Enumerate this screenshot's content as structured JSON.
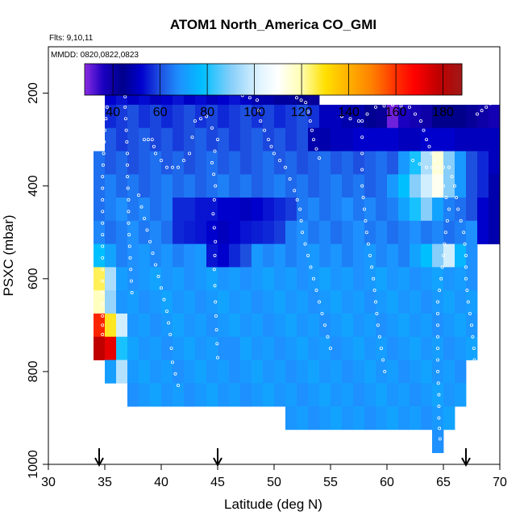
{
  "chart_data": {
    "type": "heatmap",
    "title": "ATOM1 North_America CO_GMI",
    "info_lines": [
      "Flts: 9,10,11",
      "MMDD: 0820,0822,0823"
    ],
    "xlabel": "Latitude (deg N)",
    "ylabel": "PSXC (mbar)",
    "xlim": [
      30,
      70
    ],
    "ylim": [
      1000,
      100
    ],
    "x_ticks": [
      30,
      35,
      40,
      45,
      50,
      55,
      60,
      65,
      70
    ],
    "x_tick_labels": [
      "30",
      "35",
      "40",
      "45",
      "50",
      "55",
      "60",
      "65",
      "70"
    ],
    "y_ticks": [
      200,
      400,
      600,
      800,
      1000
    ],
    "y_tick_labels": [
      "200",
      "400",
      "600",
      "800",
      "1000"
    ],
    "grid": false,
    "colorbar": {
      "range": [
        28,
        188
      ],
      "ticks": [
        40,
        60,
        80,
        100,
        120,
        140,
        160,
        180
      ],
      "tick_labels": [
        "40",
        "60",
        "80",
        "100",
        "120",
        "140",
        "160",
        "180"
      ],
      "stops": [
        {
          "v": 28,
          "c": "#8A2BE2"
        },
        {
          "v": 36,
          "c": "#1A00C0"
        },
        {
          "v": 44,
          "c": "#00008B"
        },
        {
          "v": 52,
          "c": "#0000CD"
        },
        {
          "v": 60,
          "c": "#1E50E0"
        },
        {
          "v": 68,
          "c": "#1E90FF"
        },
        {
          "v": 78,
          "c": "#00BFFF"
        },
        {
          "v": 90,
          "c": "#87CEFA"
        },
        {
          "v": 102,
          "c": "#E0F4FF"
        },
        {
          "v": 110,
          "c": "#FFFFFF"
        },
        {
          "v": 120,
          "c": "#FFFFB0"
        },
        {
          "v": 130,
          "c": "#FFE000"
        },
        {
          "v": 140,
          "c": "#FFB000"
        },
        {
          "v": 150,
          "c": "#FF8000"
        },
        {
          "v": 160,
          "c": "#FF3000"
        },
        {
          "v": 168,
          "c": "#FF0000"
        },
        {
          "v": 178,
          "c": "#C00000"
        },
        {
          "v": 188,
          "c": "#A01818"
        }
      ]
    },
    "bin_width_deg": 1,
    "bin_height_mbar": 50,
    "rows": [
      {
        "p": 200,
        "lat": [
          35,
          53
        ],
        "value": 52
      },
      {
        "p": 250,
        "lat": [
          35,
          69
        ],
        "value": 58
      },
      {
        "p": 300,
        "lat": [
          35,
          69
        ],
        "value": 60
      },
      {
        "p": 350,
        "lat": [
          34,
          69
        ],
        "value": 62
      },
      {
        "p": 400,
        "lat": [
          34,
          69
        ],
        "value": 64
      },
      {
        "p": 450,
        "lat": [
          34,
          69
        ],
        "value": 66
      },
      {
        "p": 500,
        "lat": [
          34,
          69
        ],
        "value": 66
      },
      {
        "p": 550,
        "lat": [
          34,
          68
        ],
        "value": 68
      },
      {
        "p": 600,
        "lat": [
          34,
          68
        ],
        "value": 70
      },
      {
        "p": 650,
        "lat": [
          34,
          68
        ],
        "value": 70
      },
      {
        "p": 700,
        "lat": [
          34,
          68
        ],
        "value": 70
      },
      {
        "p": 750,
        "lat": [
          34,
          68
        ],
        "value": 70
      },
      {
        "p": 800,
        "lat": [
          35,
          67
        ],
        "value": 70
      },
      {
        "p": 850,
        "lat": [
          37,
          67
        ],
        "value": 70
      },
      {
        "p": 900,
        "lat": [
          51,
          66
        ],
        "value": 70
      },
      {
        "p": 950,
        "lat": [
          64,
          65
        ],
        "value": 70
      }
    ],
    "cells": [
      {
        "lat": 60,
        "p": 250,
        "v": 30
      },
      {
        "lat": 61,
        "p": 250,
        "v": 36
      },
      {
        "lat": 62,
        "p": 250,
        "v": 38
      },
      {
        "lat": 63,
        "p": 250,
        "v": 40
      },
      {
        "lat": 64,
        "p": 250,
        "v": 44
      },
      {
        "lat": 65,
        "p": 250,
        "v": 44
      },
      {
        "lat": 66,
        "p": 250,
        "v": 44
      },
      {
        "lat": 67,
        "p": 250,
        "v": 42
      },
      {
        "lat": 68,
        "p": 250,
        "v": 40
      },
      {
        "lat": 69,
        "p": 250,
        "v": 38
      },
      {
        "lat": 58,
        "p": 250,
        "v": 45
      },
      {
        "lat": 59,
        "p": 250,
        "v": 42
      },
      {
        "lat": 54,
        "p": 250,
        "v": 50
      },
      {
        "lat": 55,
        "p": 250,
        "v": 50
      },
      {
        "lat": 56,
        "p": 250,
        "v": 48
      },
      {
        "lat": 57,
        "p": 250,
        "v": 48
      },
      {
        "lat": 48,
        "p": 200,
        "v": 48
      },
      {
        "lat": 49,
        "p": 200,
        "v": 48
      },
      {
        "lat": 50,
        "p": 200,
        "v": 46
      },
      {
        "lat": 51,
        "p": 200,
        "v": 46
      },
      {
        "lat": 52,
        "p": 200,
        "v": 44
      },
      {
        "lat": 53,
        "p": 200,
        "v": 42
      },
      {
        "lat": 53,
        "p": 300,
        "v": 48
      },
      {
        "lat": 54,
        "p": 300,
        "v": 48
      },
      {
        "lat": 55,
        "p": 300,
        "v": 50
      },
      {
        "lat": 56,
        "p": 300,
        "v": 50
      },
      {
        "lat": 57,
        "p": 300,
        "v": 52
      },
      {
        "lat": 58,
        "p": 300,
        "v": 52
      },
      {
        "lat": 59,
        "p": 300,
        "v": 52
      },
      {
        "lat": 60,
        "p": 300,
        "v": 52
      },
      {
        "lat": 61,
        "p": 300,
        "v": 50
      },
      {
        "lat": 62,
        "p": 300,
        "v": 50
      },
      {
        "lat": 63,
        "p": 300,
        "v": 52
      },
      {
        "lat": 64,
        "p": 300,
        "v": 52
      },
      {
        "lat": 65,
        "p": 300,
        "v": 52
      },
      {
        "lat": 66,
        "p": 300,
        "v": 50
      },
      {
        "lat": 67,
        "p": 300,
        "v": 50
      },
      {
        "lat": 68,
        "p": 300,
        "v": 50
      },
      {
        "lat": 69,
        "p": 300,
        "v": 50
      },
      {
        "lat": 61,
        "p": 350,
        "v": 70
      },
      {
        "lat": 62,
        "p": 350,
        "v": 80
      },
      {
        "lat": 63,
        "p": 350,
        "v": 95
      },
      {
        "lat": 64,
        "p": 350,
        "v": 115
      },
      {
        "lat": 65,
        "p": 350,
        "v": 90
      },
      {
        "lat": 66,
        "p": 350,
        "v": 70
      },
      {
        "lat": 67,
        "p": 350,
        "v": 60
      },
      {
        "lat": 68,
        "p": 350,
        "v": 56
      },
      {
        "lat": 69,
        "p": 350,
        "v": 50
      },
      {
        "lat": 60,
        "p": 400,
        "v": 70
      },
      {
        "lat": 61,
        "p": 400,
        "v": 78
      },
      {
        "lat": 62,
        "p": 400,
        "v": 90
      },
      {
        "lat": 63,
        "p": 400,
        "v": 100
      },
      {
        "lat": 64,
        "p": 400,
        "v": 112
      },
      {
        "lat": 65,
        "p": 400,
        "v": 90
      },
      {
        "lat": 66,
        "p": 400,
        "v": 70
      },
      {
        "lat": 67,
        "p": 400,
        "v": 60
      },
      {
        "lat": 68,
        "p": 400,
        "v": 56
      },
      {
        "lat": 69,
        "p": 400,
        "v": 48
      },
      {
        "lat": 61,
        "p": 450,
        "v": 72
      },
      {
        "lat": 62,
        "p": 450,
        "v": 80
      },
      {
        "lat": 63,
        "p": 450,
        "v": 90
      },
      {
        "lat": 64,
        "p": 450,
        "v": 72
      },
      {
        "lat": 65,
        "p": 450,
        "v": 66
      },
      {
        "lat": 66,
        "p": 450,
        "v": 64
      },
      {
        "lat": 67,
        "p": 450,
        "v": 60
      },
      {
        "lat": 68,
        "p": 450,
        "v": 52
      },
      {
        "lat": 69,
        "p": 450,
        "v": 48
      },
      {
        "lat": 41,
        "p": 450,
        "v": 56
      },
      {
        "lat": 42,
        "p": 450,
        "v": 56
      },
      {
        "lat": 43,
        "p": 450,
        "v": 54
      },
      {
        "lat": 44,
        "p": 450,
        "v": 54
      },
      {
        "lat": 45,
        "p": 450,
        "v": 52
      },
      {
        "lat": 46,
        "p": 450,
        "v": 52
      },
      {
        "lat": 47,
        "p": 450,
        "v": 50
      },
      {
        "lat": 48,
        "p": 450,
        "v": 52
      },
      {
        "lat": 49,
        "p": 450,
        "v": 54
      },
      {
        "lat": 50,
        "p": 450,
        "v": 56
      },
      {
        "lat": 51,
        "p": 450,
        "v": 58
      },
      {
        "lat": 69,
        "p": 500,
        "v": 48
      },
      {
        "lat": 68,
        "p": 500,
        "v": 52
      },
      {
        "lat": 41,
        "p": 500,
        "v": 56
      },
      {
        "lat": 42,
        "p": 500,
        "v": 55
      },
      {
        "lat": 43,
        "p": 500,
        "v": 54
      },
      {
        "lat": 44,
        "p": 500,
        "v": 52
      },
      {
        "lat": 45,
        "p": 500,
        "v": 50
      },
      {
        "lat": 46,
        "p": 500,
        "v": 52
      },
      {
        "lat": 47,
        "p": 500,
        "v": 54
      },
      {
        "lat": 48,
        "p": 500,
        "v": 55
      },
      {
        "lat": 49,
        "p": 500,
        "v": 56
      },
      {
        "lat": 50,
        "p": 500,
        "v": 58
      },
      {
        "lat": 62,
        "p": 550,
        "v": 72
      },
      {
        "lat": 63,
        "p": 550,
        "v": 78
      },
      {
        "lat": 64,
        "p": 550,
        "v": 90
      },
      {
        "lat": 65,
        "p": 550,
        "v": 100
      },
      {
        "lat": 66,
        "p": 550,
        "v": 76
      },
      {
        "lat": 44,
        "p": 550,
        "v": 54
      },
      {
        "lat": 45,
        "p": 550,
        "v": 52
      },
      {
        "lat": 46,
        "p": 550,
        "v": 56
      },
      {
        "lat": 47,
        "p": 550,
        "v": 60
      },
      {
        "lat": 34,
        "p": 550,
        "v": 78
      },
      {
        "lat": 35,
        "p": 550,
        "v": 72
      },
      {
        "lat": 34,
        "p": 600,
        "v": 125
      },
      {
        "lat": 35,
        "p": 600,
        "v": 95
      },
      {
        "lat": 34,
        "p": 650,
        "v": 118
      },
      {
        "lat": 35,
        "p": 650,
        "v": 92
      },
      {
        "lat": 34,
        "p": 700,
        "v": 162
      },
      {
        "lat": 35,
        "p": 700,
        "v": 128
      },
      {
        "lat": 36,
        "p": 700,
        "v": 100
      },
      {
        "lat": 34,
        "p": 750,
        "v": 178
      },
      {
        "lat": 35,
        "p": 750,
        "v": 172
      },
      {
        "lat": 36,
        "p": 750,
        "v": 80
      },
      {
        "lat": 36,
        "p": 800,
        "v": 96
      },
      {
        "lat": 45,
        "p": 750,
        "v": 68
      },
      {
        "lat": 46,
        "p": 750,
        "v": 68
      }
    ],
    "obs_tracks": [
      [
        [
          35.3,
          185
        ],
        [
          36.8,
          185
        ],
        [
          36.8,
          230
        ],
        [
          36.9,
          280
        ],
        [
          37.0,
          330
        ],
        [
          37.0,
          380
        ],
        [
          37.1,
          430
        ],
        [
          37.1,
          480
        ],
        [
          37.2,
          530
        ],
        [
          37.3,
          580
        ],
        [
          37.4,
          630
        ]
      ],
      [
        [
          35.2,
          230
        ],
        [
          35.0,
          280
        ],
        [
          34.9,
          330
        ],
        [
          34.8,
          380
        ],
        [
          34.8,
          430
        ],
        [
          34.8,
          480
        ],
        [
          34.8,
          530
        ],
        [
          34.8,
          580
        ],
        [
          34.8,
          630
        ],
        [
          34.8,
          680
        ],
        [
          34.8,
          720
        ]
      ],
      [
        [
          38.5,
          300
        ],
        [
          39.2,
          300
        ],
        [
          39.5,
          330
        ],
        [
          40.5,
          360
        ],
        [
          41.5,
          360
        ],
        [
          42.5,
          330
        ],
        [
          43.0,
          260
        ],
        [
          44.0,
          250
        ],
        [
          45.0,
          300
        ],
        [
          44.5,
          350
        ],
        [
          44.8,
          400
        ],
        [
          44.6,
          460
        ],
        [
          44.8,
          520
        ],
        [
          44.7,
          580
        ],
        [
          44.8,
          650
        ],
        [
          44.9,
          710
        ],
        [
          45.0,
          770
        ]
      ],
      [
        [
          47.2,
          205
        ],
        [
          48.5,
          215
        ],
        [
          48.8,
          260
        ],
        [
          49.5,
          300
        ],
        [
          50.0,
          330
        ],
        [
          51.0,
          360
        ],
        [
          51.8,
          410
        ],
        [
          52.3,
          450
        ],
        [
          52.5,
          500
        ],
        [
          53.0,
          550
        ],
        [
          53.5,
          600
        ],
        [
          54.0,
          650
        ],
        [
          54.5,
          700
        ],
        [
          55.0,
          750
        ]
      ],
      [
        [
          52.0,
          210
        ],
        [
          52.8,
          220
        ],
        [
          53.2,
          260
        ],
        [
          53.5,
          300
        ],
        [
          54.0,
          340
        ]
      ],
      [
        [
          56.0,
          250
        ],
        [
          57.5,
          260
        ],
        [
          59.0,
          230
        ],
        [
          60.5,
          225
        ],
        [
          62.0,
          230
        ],
        [
          63.0,
          260
        ],
        [
          63.5,
          300
        ],
        [
          64.0,
          330
        ],
        [
          64.5,
          360
        ],
        [
          65.0,
          400
        ],
        [
          65.5,
          450
        ],
        [
          65.2,
          500
        ],
        [
          65.0,
          550
        ],
        [
          64.8,
          600
        ],
        [
          64.5,
          650
        ],
        [
          64.5,
          700
        ],
        [
          64.5,
          750
        ],
        [
          64.5,
          800
        ],
        [
          64.6,
          850
        ],
        [
          64.6,
          900
        ],
        [
          64.7,
          945
        ]
      ],
      [
        [
          62.3,
          345
        ],
        [
          63.5,
          360
        ],
        [
          64.5,
          360
        ],
        [
          65.5,
          360
        ],
        [
          66.0,
          400
        ],
        [
          66.3,
          450
        ],
        [
          66.8,
          500
        ],
        [
          67.0,
          550
        ],
        [
          67.0,
          600
        ],
        [
          67.2,
          650
        ],
        [
          67.5,
          700
        ],
        [
          67.7,
          750
        ],
        [
          67.8,
          800
        ]
      ],
      [
        [
          68.0,
          245
        ],
        [
          68.8,
          230
        ],
        [
          69.5,
          215
        ],
        [
          70.0,
          205
        ]
      ],
      [
        [
          57.8,
          260
        ],
        [
          57.8,
          330
        ],
        [
          57.8,
          400
        ],
        [
          58.0,
          450
        ],
        [
          58.2,
          500
        ],
        [
          58.5,
          550
        ],
        [
          58.8,
          600
        ],
        [
          59.0,
          650
        ],
        [
          59.2,
          700
        ],
        [
          59.5,
          750
        ],
        [
          59.8,
          800
        ]
      ],
      [
        [
          38.0,
          420
        ],
        [
          38.5,
          470
        ],
        [
          39.0,
          520
        ],
        [
          39.5,
          570
        ],
        [
          40.0,
          620
        ],
        [
          40.5,
          670
        ],
        [
          40.8,
          720
        ],
        [
          41.0,
          780
        ],
        [
          41.5,
          830
        ]
      ]
    ],
    "arrows_lat": [
      34.5,
      45.0,
      67.0
    ]
  }
}
